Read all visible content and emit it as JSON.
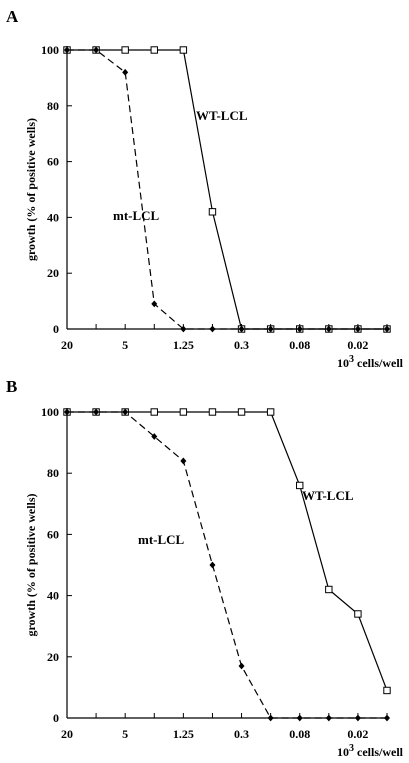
{
  "chart_data": [
    {
      "panel_label": "A",
      "type": "line",
      "xlabel": "cells/well",
      "xlabel_prefix": "10",
      "xlabel_exp": "3",
      "ylabel": "growth  (% of positive wells)",
      "ylim": [
        0,
        100
      ],
      "yticks": [
        "0",
        "20",
        "40",
        "60",
        "80",
        "100"
      ],
      "xtick_labels": [
        {
          "index": 0,
          "label": "20"
        },
        {
          "index": 2,
          "label": "5"
        },
        {
          "index": 4,
          "label": "1.25"
        },
        {
          "index": 6,
          "label": "0.3"
        },
        {
          "index": 8,
          "label": "0.08"
        },
        {
          "index": 10,
          "label": "0.02"
        }
      ],
      "x": [
        20,
        10,
        5,
        2.5,
        1.25,
        0.625,
        0.3125,
        0.156,
        0.078,
        0.039,
        0.0195,
        0.0098
      ],
      "series": [
        {
          "name": "WT-LCL",
          "marker": "open-square",
          "dash": "solid",
          "values": [
            100,
            100,
            100,
            100,
            100,
            42,
            0,
            0,
            0,
            0,
            0,
            0
          ]
        },
        {
          "name": "mt-LCL",
          "marker": "filled-diamond",
          "dash": "dashed",
          "values": [
            100,
            100,
            92,
            9,
            0,
            0,
            0,
            0,
            0,
            0,
            0,
            0
          ]
        }
      ]
    },
    {
      "panel_label": "B",
      "type": "line",
      "xlabel": "cells/well",
      "xlabel_prefix": "10",
      "xlabel_exp": "3",
      "ylabel": "growth  (% of positive wells)",
      "ylim": [
        0,
        100
      ],
      "yticks": [
        "0",
        "20",
        "40",
        "60",
        "80",
        "100"
      ],
      "xtick_labels": [
        {
          "index": 0,
          "label": "20"
        },
        {
          "index": 2,
          "label": "5"
        },
        {
          "index": 4,
          "label": "1.25"
        },
        {
          "index": 6,
          "label": "0.3"
        },
        {
          "index": 8,
          "label": "0.08"
        },
        {
          "index": 10,
          "label": "0.02"
        }
      ],
      "x": [
        20,
        10,
        5,
        2.5,
        1.25,
        0.625,
        0.3125,
        0.156,
        0.078,
        0.039,
        0.0195,
        0.0098
      ],
      "series": [
        {
          "name": "WT-LCL",
          "marker": "open-square",
          "dash": "solid",
          "values": [
            100,
            100,
            100,
            100,
            100,
            100,
            100,
            100,
            76,
            42,
            34,
            9
          ]
        },
        {
          "name": "mt-LCL",
          "marker": "filled-diamond",
          "dash": "dashed",
          "values": [
            100,
            100,
            100,
            92,
            84,
            50,
            17,
            0,
            0,
            0,
            0,
            0
          ]
        }
      ]
    }
  ]
}
